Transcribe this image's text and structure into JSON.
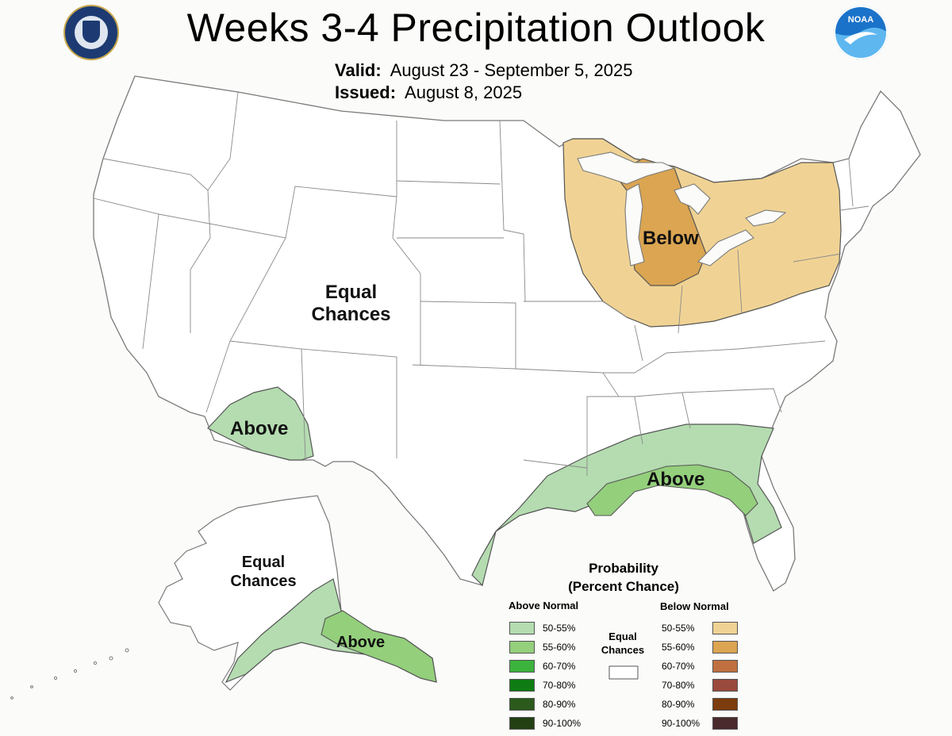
{
  "title": "Weeks 3-4 Precipitation Outlook",
  "valid": {
    "label": "Valid:",
    "value": "August 23 - September 5, 2025"
  },
  "issued": {
    "label": "Issued:",
    "value": "August 8, 2025"
  },
  "logos": {
    "left": "department-of-commerce-seal",
    "right_text": "NOAA"
  },
  "region_labels": {
    "below_great_lakes": "Below",
    "equal_chances_west": [
      "Equal",
      "Chances"
    ],
    "above_southwest": "Above",
    "above_gulf": "Above",
    "equal_chances_alaska": [
      "Equal",
      "Chances"
    ],
    "above_alaska": "Above"
  },
  "legend": {
    "title": [
      "Probability",
      "(Percent Chance)"
    ],
    "above_header": "Above Normal",
    "below_header": "Below Normal",
    "equal_label": [
      "Equal",
      "Chances"
    ],
    "above": [
      {
        "label": "50-55%",
        "color": "#b4dcb0"
      },
      {
        "label": "55-60%",
        "color": "#94cf7c"
      },
      {
        "label": "60-70%",
        "color": "#3cb33c"
      },
      {
        "label": "70-80%",
        "color": "#0f7c13"
      },
      {
        "label": "80-90%",
        "color": "#2b5a1c"
      },
      {
        "label": "90-100%",
        "color": "#234013"
      }
    ],
    "below": [
      {
        "label": "50-55%",
        "color": "#f0d394"
      },
      {
        "label": "55-60%",
        "color": "#dba552"
      },
      {
        "label": "60-70%",
        "color": "#c07040"
      },
      {
        "label": "70-80%",
        "color": "#9a4a3c"
      },
      {
        "label": "80-90%",
        "color": "#7c3c0e"
      },
      {
        "label": "90-100%",
        "color": "#4a2a2c"
      }
    ],
    "equal_color": "#ffffff"
  },
  "map_colors": {
    "land": "#ffffff",
    "background": "#fbfbf9",
    "border": "#7a7a7a",
    "state_line": "#8a8a8a",
    "water": "#fbfbf9"
  }
}
